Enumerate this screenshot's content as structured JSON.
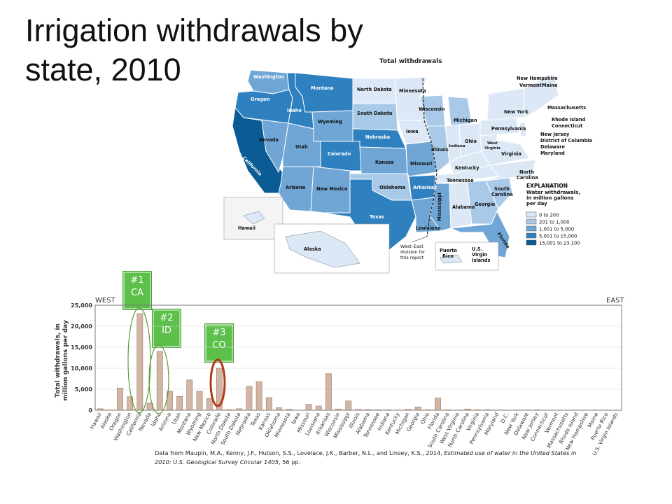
{
  "title": "Irrigation withdrawals by state, 2010",
  "map": {
    "title": "Total withdrawals",
    "explanation_title": "EXPLANATION",
    "explanation_subtitle": [
      "Water withdrawals,",
      "in million gallons",
      "per day"
    ],
    "legend": [
      {
        "label": "0 to 200",
        "color": "#dce8f5"
      },
      {
        "label": "201 to 1,000",
        "color": "#a9c9e8"
      },
      {
        "label": "1,001 to 5,000",
        "color": "#6fa6d6"
      },
      {
        "label": "5,001 to 15,000",
        "color": "#2f80bf"
      },
      {
        "label": "15,001 to 23,100",
        "color": "#0b5b94"
      }
    ],
    "division_note": [
      "West–East",
      "division for",
      "this report"
    ],
    "labels": {
      "washington": "Washington",
      "oregon": "Oregon",
      "california": "California",
      "idaho": "Idaho",
      "nevada": "Nevada",
      "montana": "Montana",
      "wyoming": "Wyoming",
      "utah": "Utah",
      "arizona": "Arizona",
      "colorado": "Colorado",
      "new_mexico": "New Mexico",
      "north_dakota": "North Dakota",
      "south_dakota": "South Dakota",
      "nebraska": "Nebraska",
      "kansas": "Kansas",
      "oklahoma": "Oklahoma",
      "texas": "Texas",
      "minnesota": "Minnesota",
      "iowa": "Iowa",
      "missouri": "Missouri",
      "arkansas": "Arkansas",
      "louisiana": "Louisiana",
      "wisconsin": "Wisconsin",
      "illinois": "Illinois",
      "michigan": "Michigan",
      "indiana": "Indiana",
      "ohio": "Ohio",
      "kentucky": "Kentucky",
      "tennessee": "Tennessee",
      "mississippi": "Mississippi",
      "alabama": "Alabama",
      "georgia": "Georgia",
      "florida": "Florida",
      "south_carolina_1": "South",
      "south_carolina_2": "Carolina",
      "north_carolina_1": "North",
      "north_carolina_2": "Carolina",
      "virginia": "Virginia",
      "west_virginia_1": "West",
      "west_virginia_2": "Virginia",
      "pennsylvania": "Pennsylvania",
      "new_york": "New York",
      "maine": "Maine",
      "new_hampshire": "New Hampshire",
      "vermont": "Vermont",
      "massachusetts": "Massachusetts",
      "rhode_island": "Rhode Island",
      "connecticut": "Connecticut",
      "new_jersey": "New Jersey",
      "dc": "District of Columbia",
      "delaware": "Delaware",
      "maryland": "Maryland",
      "hawaii": "Hawaii",
      "alaska": "Alaska",
      "puerto_rico_1": "Puerto",
      "puerto_rico_2": "Rico",
      "vi_1": "U.S.",
      "vi_2": "Virgin",
      "vi_3": "Islands"
    }
  },
  "callouts": [
    {
      "rank": "#1",
      "abbr": "CA"
    },
    {
      "rank": "#2",
      "abbr": "ID"
    },
    {
      "rank": "#3",
      "abbr": "CO"
    }
  ],
  "source": {
    "prefix": "Data from Maupin, M.A., Kenny, J.F., Hutson, S.S., Lovelace, J.K., Barber, N.L., and Linsey, K.S., 2014, ",
    "italic": "Estimated use of water in the United States in 2010: U.S. Geological Survey Circular 1405",
    "suffix": ", 56 pp."
  },
  "chart_data": {
    "type": "bar",
    "ylabel": "Total withdrawals, in million gallons per day",
    "ylabel_lines": [
      "Total withdrawals, in",
      "million gallons per day"
    ],
    "ylim": [
      0,
      25000
    ],
    "yticks": [
      0,
      5000,
      10000,
      15000,
      20000,
      25000
    ],
    "ytick_labels": [
      "0",
      "5,000",
      "10,000",
      "15,000",
      "20,000",
      "25,000"
    ],
    "region_labels": {
      "west": "WEST",
      "east": "EAST"
    },
    "bar_color": "#d2b5a2",
    "categories": [
      "Hawaii",
      "Alaska",
      "Oregon",
      "Washington",
      "California",
      "Nevada",
      "Idaho",
      "Arizona",
      "Utah",
      "Montana",
      "Wyoming",
      "New Mexico",
      "Colorado",
      "North Dakota",
      "South Dakota",
      "Nebraska",
      "Texas",
      "Kansas",
      "Oklahoma",
      "Minnesota",
      "Iowa",
      "Missouri",
      "Louisiana",
      "Arkansas",
      "Wisconsin",
      "Mississippi",
      "Illinois",
      "Alabama",
      "Tennessee",
      "Indiana",
      "Kentucky",
      "Michigan",
      "Georgia",
      "Ohio",
      "Florida",
      "South Carolina",
      "West Virginia",
      "North Carolina",
      "Virginia",
      "Pennsylvania",
      "Maryland",
      "D.C.",
      "New York",
      "Delaware",
      "New Jersey",
      "Connecticut",
      "Vermont",
      "Massachusetts",
      "Rhode Island",
      "New Hampshire",
      "Maine",
      "Puerto Rico",
      "U.S. Virgin Islands"
    ],
    "values": [
      350,
      5,
      5300,
      3200,
      23000,
      1700,
      14000,
      4500,
      3300,
      7200,
      4500,
      2800,
      10000,
      150,
      350,
      5700,
      6800,
      3000,
      600,
      250,
      0,
      1400,
      1000,
      8700,
      300,
      2200,
      200,
      150,
      100,
      100,
      50,
      200,
      800,
      100,
      2900,
      100,
      0,
      300,
      100,
      100,
      50,
      0,
      50,
      50,
      100,
      0,
      0,
      0,
      0,
      0,
      0,
      0,
      0
    ]
  }
}
